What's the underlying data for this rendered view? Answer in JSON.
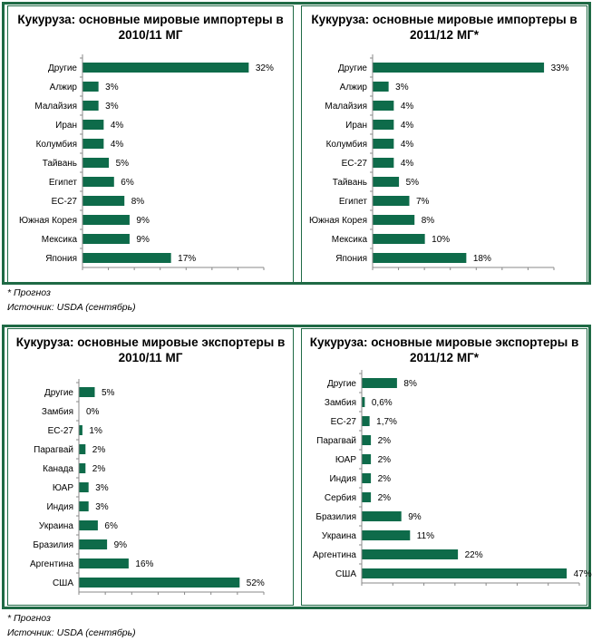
{
  "notes": {
    "forecast": "* Прогноз",
    "source": "Источник: USDA (сентябрь)"
  },
  "colors": {
    "bar": "#0e6b4a",
    "frame": "#1f6a45",
    "axis": "#888888"
  },
  "chart_data": [
    {
      "type": "bar",
      "orientation": "horizontal",
      "title_lines": [
        "Кукуруза: основные мировые импортеры в",
        "2010/11 МГ"
      ],
      "categories": [
        "Другие",
        "Алжир",
        "Малайзия",
        "Иран",
        "Колумбия",
        "Тайвань",
        "Египет",
        "ЕС-27",
        "Южная Корея",
        "Мексика",
        "Япония"
      ],
      "values": [
        32,
        3,
        3,
        4,
        4,
        5,
        6,
        8,
        9,
        9,
        17
      ],
      "labels": [
        "32%",
        "3%",
        "3%",
        "4%",
        "4%",
        "5%",
        "6%",
        "8%",
        "9%",
        "9%",
        "17%"
      ],
      "xlim": [
        0,
        35
      ],
      "grid": false
    },
    {
      "type": "bar",
      "orientation": "horizontal",
      "title_lines": [
        "Кукуруза: основные мировые импортеры в",
        "2011/12 МГ*"
      ],
      "categories": [
        "Другие",
        "Алжир",
        "Малайзия",
        "Иран",
        "Колумбия",
        "ЕС-27",
        "Тайвань",
        "Египет",
        "Южная Корея",
        "Мексика",
        "Япония"
      ],
      "values": [
        33,
        3,
        4,
        4,
        4,
        4,
        5,
        7,
        8,
        10,
        18
      ],
      "labels": [
        "33%",
        "3%",
        "4%",
        "4%",
        "4%",
        "4%",
        "5%",
        "7%",
        "8%",
        "10%",
        "18%"
      ],
      "xlim": [
        0,
        35
      ],
      "grid": false
    },
    {
      "type": "bar",
      "orientation": "horizontal",
      "title_lines": [
        "Кукуруза: основные мировые экспортеры в",
        "2010/11 МГ"
      ],
      "categories": [
        "Другие",
        "Замбия",
        "ЕС-27",
        "Парагвай",
        "Канада",
        "ЮАР",
        "Индия",
        "Украина",
        "Бразилия",
        "Аргентина",
        "США"
      ],
      "values": [
        5,
        0,
        1,
        2,
        2,
        3,
        3,
        6,
        9,
        16,
        52
      ],
      "labels": [
        "5%",
        "0%",
        "1%",
        "2%",
        "2%",
        "3%",
        "3%",
        "6%",
        "9%",
        "16%",
        "52%"
      ],
      "xlim": [
        0,
        60
      ],
      "grid": false
    },
    {
      "type": "bar",
      "orientation": "horizontal",
      "title_lines": [
        "Кукуруза: основные мировые экспортеры в",
        "2011/12 МГ*"
      ],
      "categories": [
        "Другие",
        "Замбия",
        "ЕС-27",
        "Парагвай",
        "ЮАР",
        "Индия",
        "Сербия",
        "Бразилия",
        "Украина",
        "Аргентина",
        "США"
      ],
      "values": [
        8,
        0.6,
        1.7,
        2,
        2,
        2,
        2,
        9,
        11,
        22,
        47
      ],
      "labels": [
        "8%",
        "0,6%",
        "1,7%",
        "2%",
        "2%",
        "2%",
        "2%",
        "9%",
        "11%",
        "22%",
        "47%"
      ],
      "xlim": [
        0,
        50
      ],
      "grid": false
    }
  ]
}
